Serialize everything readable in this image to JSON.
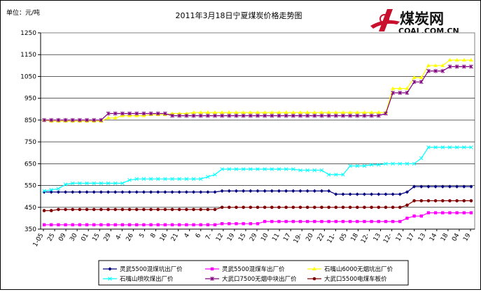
{
  "chart_data": {
    "type": "line",
    "title": "2011年3月18日宁夏煤炭价格走势图",
    "unit_label": "单位：元/吨",
    "ylim": [
      350,
      1250
    ],
    "yticks": [
      350,
      450,
      550,
      650,
      750,
      850,
      950,
      1050,
      1150,
      1250
    ],
    "xtick_labels": [
      "1-05",
      "25",
      "09",
      "30",
      "01",
      "15",
      "29",
      "4-",
      "26",
      "5",
      "8",
      "16",
      "21",
      "4",
      "6",
      "7-",
      "12",
      "19",
      "15",
      "29",
      "10",
      "11",
      "17",
      "19-",
      "20",
      "22",
      "11-",
      "05",
      "18",
      "12-",
      "13",
      "12-",
      "17",
      "17",
      "13",
      "14",
      "18",
      "04",
      "19"
    ],
    "legend": {
      "placement": "bottom",
      "entries": [
        "灵武5500混煤坑出厂价",
        "灵武5500混煤车出厂价",
        "石嘴山6000无烟坑出厂价",
        "石嘴山喷吹煤出厂价",
        "大武口7500无烟中块出厂价",
        "大武口5500电煤车板价"
      ]
    },
    "point_count": 61,
    "series": [
      {
        "name": "灵武5500混煤坑出厂价",
        "color": "#000080",
        "marker": "diamond",
        "values": [
          520,
          520,
          520,
          520,
          520,
          520,
          520,
          520,
          520,
          520,
          520,
          520,
          520,
          520,
          520,
          520,
          520,
          520,
          520,
          520,
          520,
          520,
          520,
          520,
          520,
          525,
          525,
          525,
          525,
          525,
          525,
          525,
          525,
          525,
          525,
          525,
          525,
          525,
          525,
          525,
          525,
          510,
          510,
          510,
          510,
          510,
          510,
          510,
          510,
          510,
          510,
          520,
          545,
          545,
          545,
          545,
          545,
          545,
          545,
          545,
          545
        ]
      },
      {
        "name": "灵武5500混煤车出厂价",
        "color": "#ff00ff",
        "marker": "square",
        "values": [
          370,
          370,
          370,
          370,
          370,
          370,
          370,
          370,
          370,
          370,
          370,
          370,
          370,
          370,
          370,
          370,
          370,
          370,
          370,
          370,
          370,
          370,
          370,
          370,
          370,
          375,
          375,
          375,
          375,
          375,
          375,
          385,
          385,
          385,
          385,
          385,
          385,
          385,
          385,
          385,
          385,
          385,
          385,
          385,
          385,
          385,
          385,
          385,
          385,
          385,
          385,
          400,
          410,
          410,
          425,
          425,
          425,
          425,
          425,
          425,
          425
        ]
      },
      {
        "name": "石嘴山6000无烟坑出厂价",
        "color": "#ffff00",
        "marker": "triangle",
        "values": [
          850,
          845,
          845,
          845,
          845,
          845,
          845,
          845,
          845,
          860,
          860,
          870,
          870,
          870,
          870,
          875,
          875,
          875,
          880,
          880,
          880,
          885,
          885,
          885,
          885,
          885,
          885,
          885,
          885,
          885,
          885,
          885,
          885,
          885,
          885,
          885,
          885,
          885,
          885,
          885,
          885,
          885,
          885,
          885,
          885,
          885,
          885,
          885,
          885,
          995,
          995,
          995,
          1045,
          1045,
          1100,
          1100,
          1100,
          1125,
          1125,
          1125,
          1125
        ]
      },
      {
        "name": "石嘴山喷吹煤出厂价",
        "color": "#00ffff",
        "marker": "x",
        "values": [
          525,
          530,
          535,
          555,
          560,
          560,
          560,
          560,
          560,
          560,
          560,
          560,
          575,
          580,
          580,
          580,
          580,
          580,
          580,
          580,
          580,
          580,
          580,
          590,
          600,
          625,
          625,
          625,
          625,
          625,
          625,
          625,
          625,
          625,
          625,
          625,
          620,
          620,
          620,
          620,
          600,
          600,
          600,
          640,
          640,
          640,
          645,
          645,
          650,
          650,
          650,
          650,
          650,
          675,
          725,
          725,
          725,
          725,
          725,
          725,
          725
        ]
      },
      {
        "name": "大武口7500无烟中块出厂价",
        "color": "#800080",
        "marker": "star",
        "values": [
          850,
          850,
          850,
          850,
          850,
          850,
          850,
          850,
          850,
          880,
          880,
          880,
          880,
          880,
          880,
          880,
          880,
          880,
          870,
          870,
          870,
          870,
          870,
          870,
          870,
          870,
          870,
          870,
          870,
          870,
          870,
          870,
          870,
          870,
          870,
          870,
          870,
          870,
          870,
          870,
          870,
          870,
          870,
          870,
          870,
          870,
          870,
          870,
          880,
          975,
          975,
          975,
          1025,
          1025,
          1075,
          1075,
          1075,
          1095,
          1095,
          1095,
          1095
        ]
      },
      {
        "name": "大武口5500电煤车板价",
        "color": "#800000",
        "marker": "circle",
        "values": [
          435,
          435,
          440,
          440,
          440,
          440,
          440,
          440,
          440,
          440,
          440,
          440,
          440,
          440,
          440,
          440,
          440,
          440,
          440,
          440,
          440,
          440,
          440,
          440,
          440,
          450,
          450,
          450,
          450,
          450,
          450,
          450,
          450,
          450,
          450,
          450,
          450,
          450,
          450,
          450,
          450,
          450,
          450,
          450,
          450,
          450,
          450,
          450,
          450,
          450,
          450,
          460,
          480,
          480,
          480,
          480,
          480,
          480,
          480,
          480,
          480
        ]
      }
    ]
  },
  "logo": {
    "brand_cn": "煤炭网",
    "domain": "COAL.COM.CN"
  }
}
